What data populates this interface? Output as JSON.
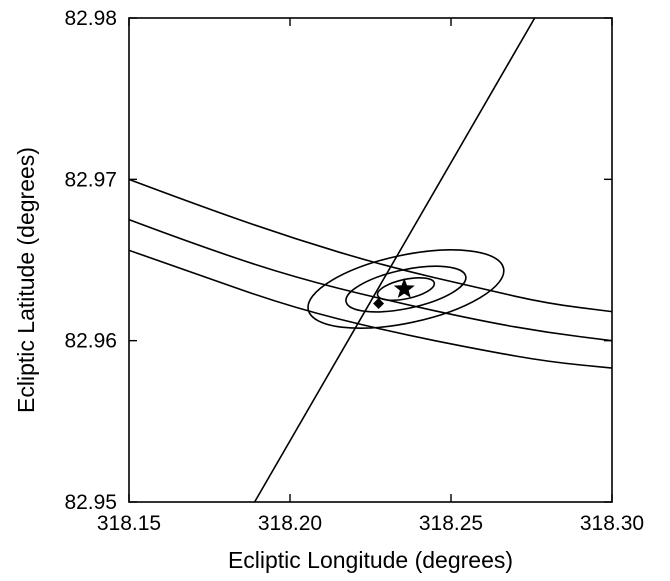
{
  "chart_data": {
    "type": "line",
    "title": "",
    "xlabel": "Ecliptic Longitude (degrees)",
    "ylabel": "Ecliptic Latitude (degrees)",
    "xlim": [
      318.15,
      318.3
    ],
    "ylim": [
      82.95,
      82.98
    ],
    "x_ticks": [
      318.15,
      318.2,
      318.25,
      318.3
    ],
    "x_tick_labels": [
      "318.15",
      "318.20",
      "318.25",
      "318.30"
    ],
    "y_ticks": [
      82.95,
      82.96,
      82.97,
      82.98
    ],
    "y_tick_labels": [
      "82.95",
      "82.96",
      "82.97",
      "82.98"
    ],
    "grid": false,
    "legend": "none",
    "colors": {
      "line": "#000000",
      "background": "#ffffff"
    },
    "series": [
      {
        "x": [
          318.15,
          318.17,
          318.2,
          318.23,
          318.26,
          318.28,
          318.3
        ],
        "y": [
          82.97,
          82.9685,
          82.9664,
          82.9646,
          82.9632,
          82.9623,
          82.9618
        ]
      },
      {
        "x": [
          318.15,
          318.17,
          318.2,
          318.23,
          318.26,
          318.28,
          318.3
        ],
        "y": [
          82.9675,
          82.966,
          82.964,
          82.9625,
          82.9612,
          82.9605,
          82.96
        ]
      },
      {
        "x": [
          318.15,
          318.17,
          318.2,
          318.23,
          318.26,
          318.28,
          318.3
        ],
        "y": [
          82.9656,
          82.9642,
          82.9621,
          82.9606,
          82.9594,
          82.9587,
          82.9583
        ]
      },
      {
        "x": [
          318.189,
          318.276
        ],
        "y": [
          82.95,
          82.98
        ]
      }
    ],
    "ellipses": [
      {
        "cx": 318.236,
        "cy": 82.9632,
        "rx": 0.031,
        "ry": 0.0021,
        "angle_deg": -12
      },
      {
        "cx": 318.236,
        "cy": 82.9632,
        "rx": 0.019,
        "ry": 0.0012,
        "angle_deg": -12
      },
      {
        "cx": 318.236,
        "cy": 82.9632,
        "rx": 0.009,
        "ry": 0.0006,
        "angle_deg": -12
      }
    ],
    "markers": [
      {
        "symbol": "star",
        "x": 318.2355,
        "y": 82.9632
      },
      {
        "symbol": "diamond",
        "x": 318.2275,
        "y": 82.9623
      }
    ]
  }
}
